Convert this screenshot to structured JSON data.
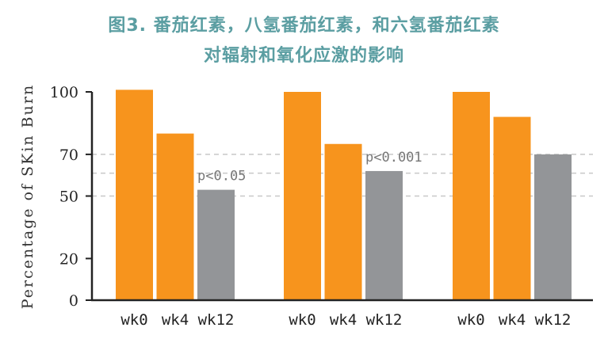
{
  "chart_data": {
    "type": "bar",
    "title": "图3. 番茄红素，八氢番茄红素，和六氢番茄红素",
    "subtitle": "对辐射和氧化应激的影响",
    "ylabel": "Percentage of SKin Burn",
    "ylim": [
      0,
      100
    ],
    "yticks": [
      0,
      20,
      50,
      70,
      100
    ],
    "gridlines": [
      50,
      61,
      70
    ],
    "groups": [
      {
        "categories": [
          "wk0",
          "wk4",
          "wk12"
        ],
        "values": [
          101,
          80,
          53
        ],
        "annotation": "p<0.05"
      },
      {
        "categories": [
          "wk0",
          "wk4",
          "wk12"
        ],
        "values": [
          100,
          75,
          62
        ],
        "annotation": "p<0.001"
      },
      {
        "categories": [
          "wk0",
          "wk4",
          "wk12"
        ],
        "values": [
          100,
          88,
          70
        ],
        "annotation": ""
      }
    ],
    "colors": {
      "bar_primary": "#f7941d",
      "bar_final": "#939598",
      "grid": "#c8c8c8",
      "title": "#5b9ea2"
    }
  }
}
